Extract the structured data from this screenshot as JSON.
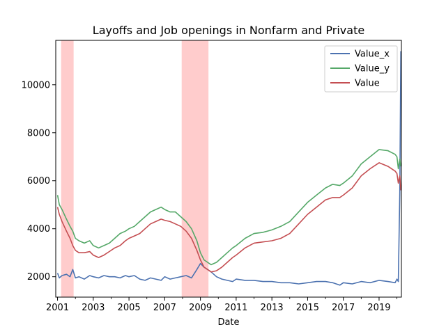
{
  "chart_data": {
    "type": "line",
    "title": "Layoffs and Job openings in Nonfarm and Private",
    "xlabel": "Date",
    "ylabel": "",
    "xlim": [
      2000.9,
      2020.25
    ],
    "ylim": [
      1150,
      11850
    ],
    "x_ticks": [
      2001,
      2003,
      2005,
      2007,
      2009,
      2011,
      2013,
      2015,
      2017,
      2019
    ],
    "x_tick_labels": [
      "2001",
      "2003",
      "2005",
      "2007",
      "2009",
      "2011",
      "2013",
      "2015",
      "2017",
      "2019"
    ],
    "y_ticks": [
      2000,
      4000,
      6000,
      8000,
      10000
    ],
    "y_tick_labels": [
      "2000",
      "4000",
      "6000",
      "8000",
      "10000"
    ],
    "grid": false,
    "legend_position": "top-right",
    "recession_bands": [
      {
        "start": 2001.2,
        "end": 2001.9
      },
      {
        "start": 2007.95,
        "end": 2009.45
      }
    ],
    "series": [
      {
        "name": "Value_x",
        "color": "#4c72b0",
        "x": [
          2001.0,
          2001.1,
          2001.25,
          2001.5,
          2001.7,
          2001.85,
          2002.0,
          2002.2,
          2002.5,
          2002.8,
          2003.0,
          2003.3,
          2003.6,
          2003.9,
          2004.2,
          2004.5,
          2004.8,
          2005.0,
          2005.3,
          2005.6,
          2005.9,
          2006.2,
          2006.5,
          2006.8,
          2007.0,
          2007.3,
          2007.6,
          2007.9,
          2008.2,
          2008.5,
          2008.8,
          2009.0,
          2009.2,
          2009.4,
          2009.6,
          2009.9,
          2010.2,
          2010.5,
          2010.8,
          2011.0,
          2011.5,
          2012.0,
          2012.5,
          2013.0,
          2013.5,
          2014.0,
          2014.5,
          2015.0,
          2015.5,
          2016.0,
          2016.4,
          2016.8,
          2017.0,
          2017.5,
          2018.0,
          2018.5,
          2019.0,
          2019.5,
          2019.9,
          2020.0,
          2020.08,
          2020.16,
          2020.22
        ],
        "values": [
          2150,
          1950,
          2050,
          2100,
          2000,
          2300,
          1950,
          2000,
          1900,
          2050,
          2000,
          1950,
          2050,
          2000,
          2000,
          1950,
          2050,
          2000,
          2050,
          1900,
          1850,
          1950,
          1900,
          1850,
          2000,
          1900,
          1950,
          2000,
          2050,
          1950,
          2300,
          2550,
          2400,
          2300,
          2200,
          2000,
          1900,
          1850,
          1800,
          1900,
          1850,
          1850,
          1800,
          1800,
          1750,
          1750,
          1700,
          1750,
          1800,
          1800,
          1750,
          1650,
          1750,
          1700,
          1800,
          1750,
          1850,
          1800,
          1750,
          1900,
          1800,
          5500,
          11400
        ]
      },
      {
        "name": "Value_y",
        "color": "#55a868",
        "x": [
          2001.0,
          2001.1,
          2001.25,
          2001.5,
          2001.7,
          2001.85,
          2002.0,
          2002.2,
          2002.5,
          2002.8,
          2003.0,
          2003.3,
          2003.6,
          2003.9,
          2004.2,
          2004.5,
          2004.8,
          2005.0,
          2005.3,
          2005.6,
          2005.9,
          2006.2,
          2006.5,
          2006.8,
          2007.0,
          2007.3,
          2007.6,
          2007.9,
          2008.2,
          2008.5,
          2008.8,
          2009.0,
          2009.2,
          2009.4,
          2009.6,
          2009.9,
          2010.2,
          2010.5,
          2010.8,
          2011.0,
          2011.5,
          2012.0,
          2012.5,
          2013.0,
          2013.5,
          2014.0,
          2014.5,
          2015.0,
          2015.5,
          2016.0,
          2016.4,
          2016.8,
          2017.0,
          2017.5,
          2018.0,
          2018.5,
          2019.0,
          2019.5,
          2019.9,
          2020.0,
          2020.08,
          2020.16,
          2020.22
        ],
        "values": [
          5400,
          5000,
          4800,
          4400,
          4100,
          3900,
          3600,
          3500,
          3400,
          3500,
          3300,
          3200,
          3300,
          3400,
          3600,
          3800,
          3900,
          4000,
          4100,
          4300,
          4500,
          4700,
          4800,
          4900,
          4800,
          4700,
          4700,
          4500,
          4300,
          4000,
          3500,
          3000,
          2700,
          2600,
          2500,
          2600,
          2800,
          3000,
          3200,
          3300,
          3600,
          3800,
          3850,
          3950,
          4100,
          4300,
          4700,
          5100,
          5400,
          5700,
          5850,
          5800,
          5900,
          6200,
          6700,
          7000,
          7300,
          7250,
          7100,
          7000,
          6500,
          6900,
          6600
        ]
      },
      {
        "name": "Value",
        "color": "#c44e52",
        "x": [
          2001.0,
          2001.1,
          2001.25,
          2001.5,
          2001.7,
          2001.85,
          2002.0,
          2002.2,
          2002.5,
          2002.8,
          2003.0,
          2003.3,
          2003.6,
          2003.9,
          2004.2,
          2004.5,
          2004.8,
          2005.0,
          2005.3,
          2005.6,
          2005.9,
          2006.2,
          2006.5,
          2006.8,
          2007.0,
          2007.3,
          2007.6,
          2007.9,
          2008.2,
          2008.5,
          2008.8,
          2009.0,
          2009.2,
          2009.4,
          2009.6,
          2009.9,
          2010.2,
          2010.5,
          2010.8,
          2011.0,
          2011.5,
          2012.0,
          2012.5,
          2013.0,
          2013.5,
          2014.0,
          2014.5,
          2015.0,
          2015.5,
          2016.0,
          2016.4,
          2016.8,
          2017.0,
          2017.5,
          2018.0,
          2018.5,
          2019.0,
          2019.5,
          2019.9,
          2020.0,
          2020.08,
          2020.16,
          2020.22
        ],
        "values": [
          4900,
          4600,
          4300,
          3900,
          3600,
          3300,
          3100,
          3000,
          3000,
          3050,
          2900,
          2800,
          2900,
          3050,
          3200,
          3300,
          3500,
          3600,
          3700,
          3800,
          4000,
          4200,
          4300,
          4400,
          4350,
          4300,
          4200,
          4100,
          3900,
          3600,
          3100,
          2700,
          2400,
          2300,
          2200,
          2250,
          2400,
          2600,
          2800,
          2900,
          3200,
          3400,
          3450,
          3500,
          3600,
          3800,
          4200,
          4600,
          4900,
          5200,
          5300,
          5300,
          5400,
          5700,
          6200,
          6500,
          6750,
          6600,
          6400,
          6300,
          5900,
          6200,
          5600
        ]
      }
    ]
  }
}
